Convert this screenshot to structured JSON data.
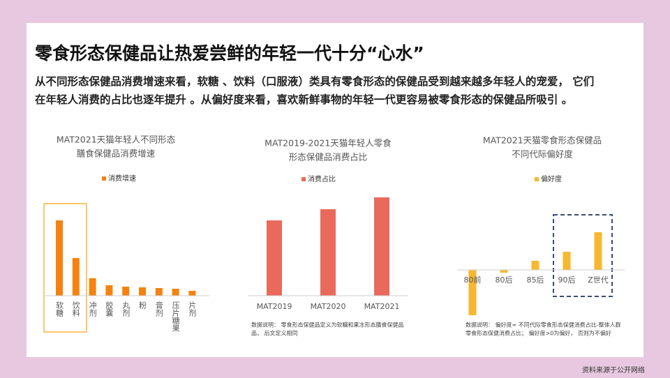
{
  "slide": {
    "title": "零食形态保健品让热爱尝鲜的年轻一代十分“心水”",
    "paragraph": [
      "从不同形态保健品消费增速来看，软糖 、饮料（口服液）类具有零食形态的保健品受到越来越多年轻人的宠爱， 它们",
      "在年轻人消费的占比也逐年提升 。从偏好度来看，喜欢新鲜事物的年轻一代更容易被零食形态的保健品所吸引 。"
    ],
    "source": "资料来源于公开网络"
  },
  "chart_data": [
    {
      "type": "bar",
      "title": [
        "MAT2021天猫年轻人不同形态",
        "膳食保健品消费增速"
      ],
      "categories": [
        "软糖",
        "饮料",
        "冲剂",
        "胶囊",
        "丸剂",
        "粉",
        "膏剂",
        "压片糖果",
        "片剂"
      ],
      "series": [
        {
          "name": "消费增速",
          "color": "#f5820f",
          "values": [
            108,
            54,
            25,
            15,
            13,
            12,
            11,
            10,
            7
          ]
        }
      ]
    },
    {
      "type": "bar",
      "title": [
        "MAT2019-2021天猫年轻人零食",
        "形态保健品消费占比"
      ],
      "categories": [
        "MAT2019",
        "MAT2020",
        "MAT2021"
      ],
      "series": [
        {
          "name": "消费占比",
          "color": "#e96a5b",
          "values": [
            108,
            124,
            141
          ]
        }
      ],
      "note": [
        "数据说明： 零食形态保健品定义为软糖和果冻形态膳食保健品",
        "品， 后文定义相同"
      ]
    },
    {
      "type": "bar",
      "title": [
        "MAT2021天猫零食形态保健品",
        "不同代际偏好度"
      ],
      "categories": [
        "80前",
        "80后",
        "85后",
        "90后",
        "Z世代"
      ],
      "series": [
        {
          "name": "偏好度",
          "color": "#f7b731",
          "values": [
            -65,
            -4,
            13,
            26,
            54
          ]
        }
      ],
      "note": [
        "数据说明： 偏好度= 不同代际零食形态保健消费占比-整体人群",
        "零食形态保健消费占比； 偏好度>0为偏好， 否则为不偏好"
      ]
    }
  ]
}
